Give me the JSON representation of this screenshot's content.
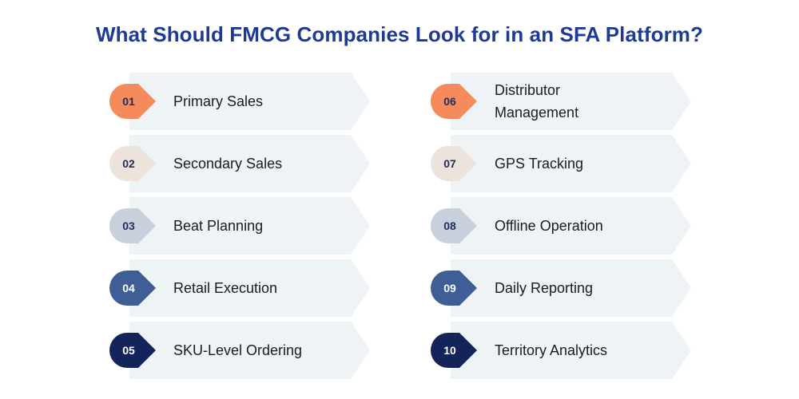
{
  "title": "What Should FMCG Companies Look for in an SFA Platform?",
  "items": [
    {
      "num": "01",
      "label": "Primary Sales",
      "color": "#f58b5b",
      "text_color": "#1f2d5c"
    },
    {
      "num": "02",
      "label": "Secondary Sales",
      "color": "#ece3dd",
      "text_color": "#1f2d5c"
    },
    {
      "num": "03",
      "label": "Beat Planning",
      "color": "#c8cfdd",
      "text_color": "#1f2d5c"
    },
    {
      "num": "04",
      "label": "Retail Execution",
      "color": "#405e96",
      "text_color": "#ffffff"
    },
    {
      "num": "05",
      "label": "SKU-Level Ordering",
      "color": "#14235a",
      "text_color": "#ffffff"
    },
    {
      "num": "06",
      "label": "Distributor Management",
      "color": "#f58b5b",
      "text_color": "#1f2d5c"
    },
    {
      "num": "07",
      "label": "GPS Tracking",
      "color": "#ece3dd",
      "text_color": "#1f2d5c"
    },
    {
      "num": "08",
      "label": "Offline Operation",
      "color": "#c8cfdd",
      "text_color": "#1f2d5c"
    },
    {
      "num": "09",
      "label": "Daily Reporting",
      "color": "#405e96",
      "text_color": "#ffffff"
    },
    {
      "num": "10",
      "label": "Territory Analytics",
      "color": "#14235a",
      "text_color": "#ffffff"
    }
  ],
  "colors": {
    "title": "#1f3a93",
    "card_background": "#eef3f5"
  }
}
